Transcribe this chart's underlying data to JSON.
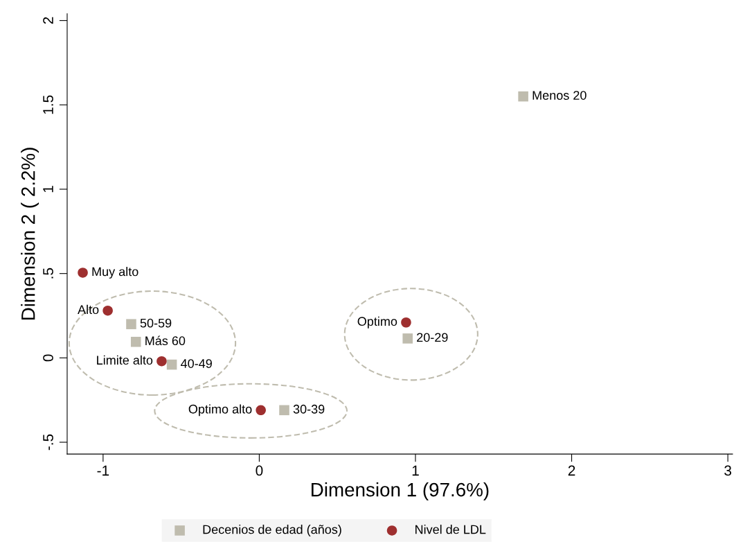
{
  "chart_data": {
    "type": "scatter",
    "xlabel": "Dimension 1 (97.6%)",
    "ylabel": "Dimension 2 ( 2.2%)",
    "xlim": [
      -1.23,
      3.03
    ],
    "ylim": [
      -0.57,
      2.04
    ],
    "xticks": [
      -1,
      0,
      1,
      2,
      3
    ],
    "yticks": [
      {
        "value": -0.5,
        "label": "-.5"
      },
      0,
      {
        "value": 0.5,
        "label": ".5"
      },
      1,
      1.5,
      2
    ],
    "grid": false,
    "legend": "bottom",
    "series": [
      {
        "name": "Decenios de edad (años)",
        "color": "#bfbcae",
        "marker": "square",
        "x": [
          1.69,
          0.95,
          0.16,
          -0.56,
          -0.82,
          -0.79
        ],
        "values": [
          1.55,
          0.115,
          -0.31,
          -0.04,
          0.2,
          0.095
        ]
      },
      {
        "name": "Nivel de LDL",
        "color": "#9e2f2f",
        "marker": "circle",
        "x": [
          0.94,
          0.01,
          -0.625,
          -0.97,
          -1.13
        ],
        "values": [
          0.21,
          -0.31,
          -0.02,
          0.28,
          0.505
        ]
      }
    ],
    "annotations": [
      {
        "text": "Menos 20",
        "x": 1.69,
        "y": 1.55
      },
      {
        "text": "20-29",
        "x": 0.95,
        "y": 0.115
      },
      {
        "text": "30-39",
        "x": 0.16,
        "y": -0.31
      },
      {
        "text": "40-49",
        "x": -0.56,
        "y": -0.04
      },
      {
        "text": "50-59",
        "x": -0.82,
        "y": 0.2
      },
      {
        "text": "Más 60",
        "x": -0.79,
        "y": 0.095
      },
      {
        "text": "Optimo",
        "x": 0.94,
        "y": 0.21
      },
      {
        "text": "Optimo alto",
        "x": 0.01,
        "y": -0.31
      },
      {
        "text": "Limite alto",
        "x": -0.625,
        "y": -0.02
      },
      {
        "text": "Alto",
        "x": -0.97,
        "y": 0.28
      },
      {
        "text": "Muy alto",
        "x": -1.13,
        "y": 0.505
      }
    ]
  }
}
